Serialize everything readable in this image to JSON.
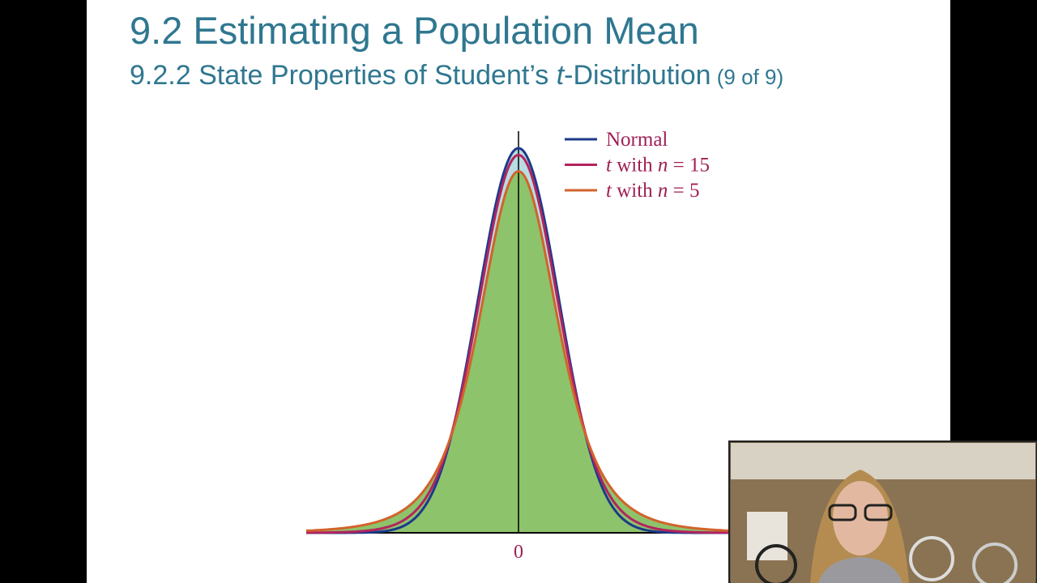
{
  "slide": {
    "title": "9.2 Estimating a Population Mean",
    "subtitle": [
      {
        "text": "9.2.2 State Properties of Student’s "
      },
      {
        "text": "t",
        "italic": true
      },
      {
        "text": "-Distribution"
      },
      {
        "text": " (9 of 9)",
        "small": true
      }
    ]
  },
  "figure": {
    "legend": [
      {
        "color": "#1d3a8a",
        "parts": [
          {
            "text": "Normal"
          }
        ]
      },
      {
        "color": "#b3245e",
        "parts": [
          {
            "text": "t",
            "italic": true
          },
          {
            "text": " with "
          },
          {
            "text": "n",
            "italic": true
          },
          {
            "text": " = 15"
          }
        ]
      },
      {
        "color": "#d2632b",
        "parts": [
          {
            "text": "t",
            "italic": true
          },
          {
            "text": " with "
          },
          {
            "text": "n",
            "italic": true
          },
          {
            "text": " = 5"
          }
        ]
      }
    ],
    "axis_label": "0"
  }
}
